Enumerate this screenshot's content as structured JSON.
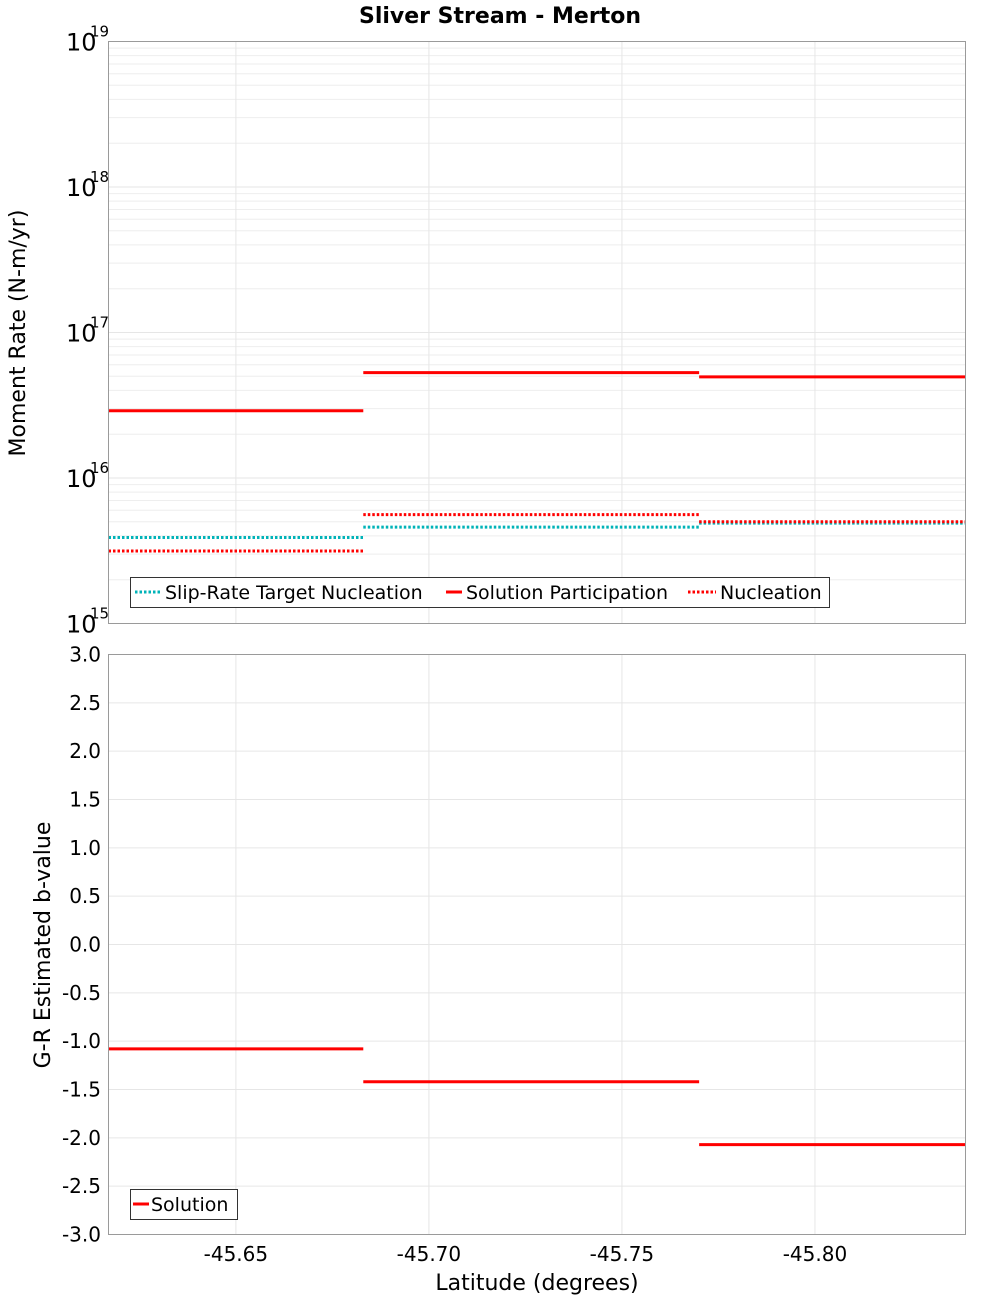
{
  "chart_data": [
    {
      "type": "line",
      "title": "Sliver Stream - Merton",
      "xlabel": "",
      "ylabel": "Moment Rate (N-m/yr)",
      "yscale": "log",
      "ylim": [
        1000000000000000.0,
        1e+19
      ],
      "xlim": [
        -45.617,
        -45.839
      ],
      "ytick_base": "10",
      "ytick_exponents": [
        "15",
        "16",
        "17",
        "18",
        "19"
      ],
      "legend_position": "bottom-left",
      "series": [
        {
          "name": "Slip-Rate Target Nucleation",
          "style": "dotted",
          "color": "#00b3b8",
          "segments": [
            {
              "x0": -45.617,
              "x1": -45.683,
              "y": 3900000000000000.0
            },
            {
              "x0": -45.683,
              "x1": -45.77,
              "y": 4600000000000000.0
            },
            {
              "x0": -45.77,
              "x1": -45.839,
              "y": 4900000000000000.0
            }
          ]
        },
        {
          "name": "Solution Participation",
          "style": "solid",
          "color": "#ff0000",
          "segments": [
            {
              "x0": -45.617,
              "x1": -45.683,
              "y": 2.9e+16
            },
            {
              "x0": -45.683,
              "x1": -45.77,
              "y": 5.3e+16
            },
            {
              "x0": -45.77,
              "x1": -45.839,
              "y": 4.95e+16
            }
          ]
        },
        {
          "name": "Nucleation",
          "style": "dotted",
          "color": "#ff0000",
          "segments": [
            {
              "x0": -45.617,
              "x1": -45.683,
              "y": 3150000000000000.0
            },
            {
              "x0": -45.683,
              "x1": -45.77,
              "y": 5600000000000000.0
            },
            {
              "x0": -45.77,
              "x1": -45.839,
              "y": 5000000000000000.0
            }
          ]
        }
      ]
    },
    {
      "type": "line",
      "title": "",
      "xlabel": "Latitude (degrees)",
      "ylabel": "G-R Estimated b-value",
      "ylim": [
        -3.0,
        3.0
      ],
      "xlim": [
        -45.617,
        -45.839
      ],
      "yticks": [
        "3.0",
        "2.5",
        "2.0",
        "1.5",
        "1.0",
        "0.5",
        "0.0",
        "-0.5",
        "-1.0",
        "-1.5",
        "-2.0",
        "-2.5",
        "-3.0"
      ],
      "xticks": [
        "-45.65",
        "-45.70",
        "-45.75",
        "-45.80"
      ],
      "legend_position": "bottom-left",
      "series": [
        {
          "name": "Solution",
          "style": "solid",
          "color": "#ff0000",
          "segments": [
            {
              "x0": -45.617,
              "x1": -45.683,
              "y": -1.08
            },
            {
              "x0": -45.683,
              "x1": -45.77,
              "y": -1.42
            },
            {
              "x0": -45.77,
              "x1": -45.839,
              "y": -2.07
            }
          ]
        }
      ]
    }
  ]
}
